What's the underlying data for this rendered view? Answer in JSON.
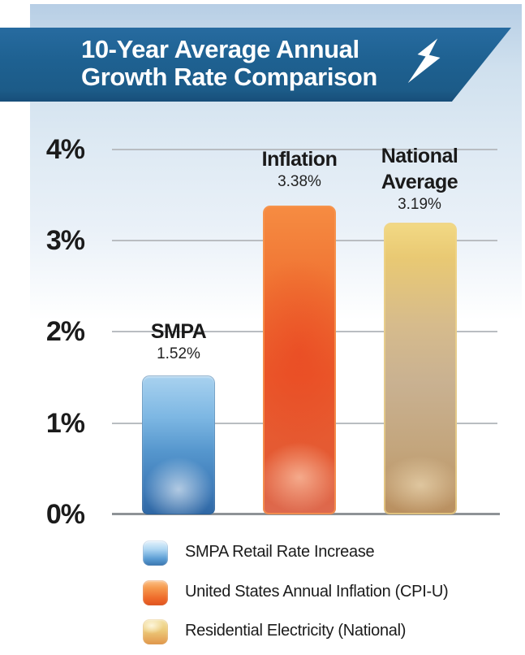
{
  "banner": {
    "title_line1": "10-Year Average Annual",
    "title_line2": "Growth Rate Comparison",
    "icon": "lightning-bolt-icon",
    "background_color": "#1E6191",
    "text_color": "#FFFFFF"
  },
  "chart_data": {
    "type": "bar",
    "title": "10-Year Average Annual Growth Rate Comparison",
    "categories": [
      "SMPA",
      "Inflation",
      "National Average"
    ],
    "values": [
      1.52,
      3.38,
      3.19
    ],
    "xlabel": "",
    "ylabel": "",
    "ylim": [
      0,
      4
    ],
    "y_ticks": [
      "0%",
      "1%",
      "2%",
      "3%",
      "4%"
    ],
    "grid": true,
    "legend_position": "bottom",
    "bars": [
      {
        "label_lines": [
          "SMPA",
          ""
        ],
        "value": 1.52,
        "value_label": "1.52%",
        "color": "#4E96D2"
      },
      {
        "label_lines": [
          "Inflation",
          ""
        ],
        "value": 3.38,
        "value_label": "3.38%",
        "color": "#EC5B28"
      },
      {
        "label_lines": [
          "National",
          "Average"
        ],
        "value": 3.19,
        "value_label": "3.19%",
        "color": "#D9B97E"
      }
    ],
    "legend": [
      {
        "label": "SMPA Retail Rate Increase",
        "color": "#4E96D2"
      },
      {
        "label": "United States Annual Inflation (CPI-U)",
        "color": "#EC5B28"
      },
      {
        "label": "Residential Electricity (National)",
        "color": "#D9B97E"
      }
    ],
    "gridline_color": "#B9BDC1",
    "axis_color": "#8E9296"
  }
}
